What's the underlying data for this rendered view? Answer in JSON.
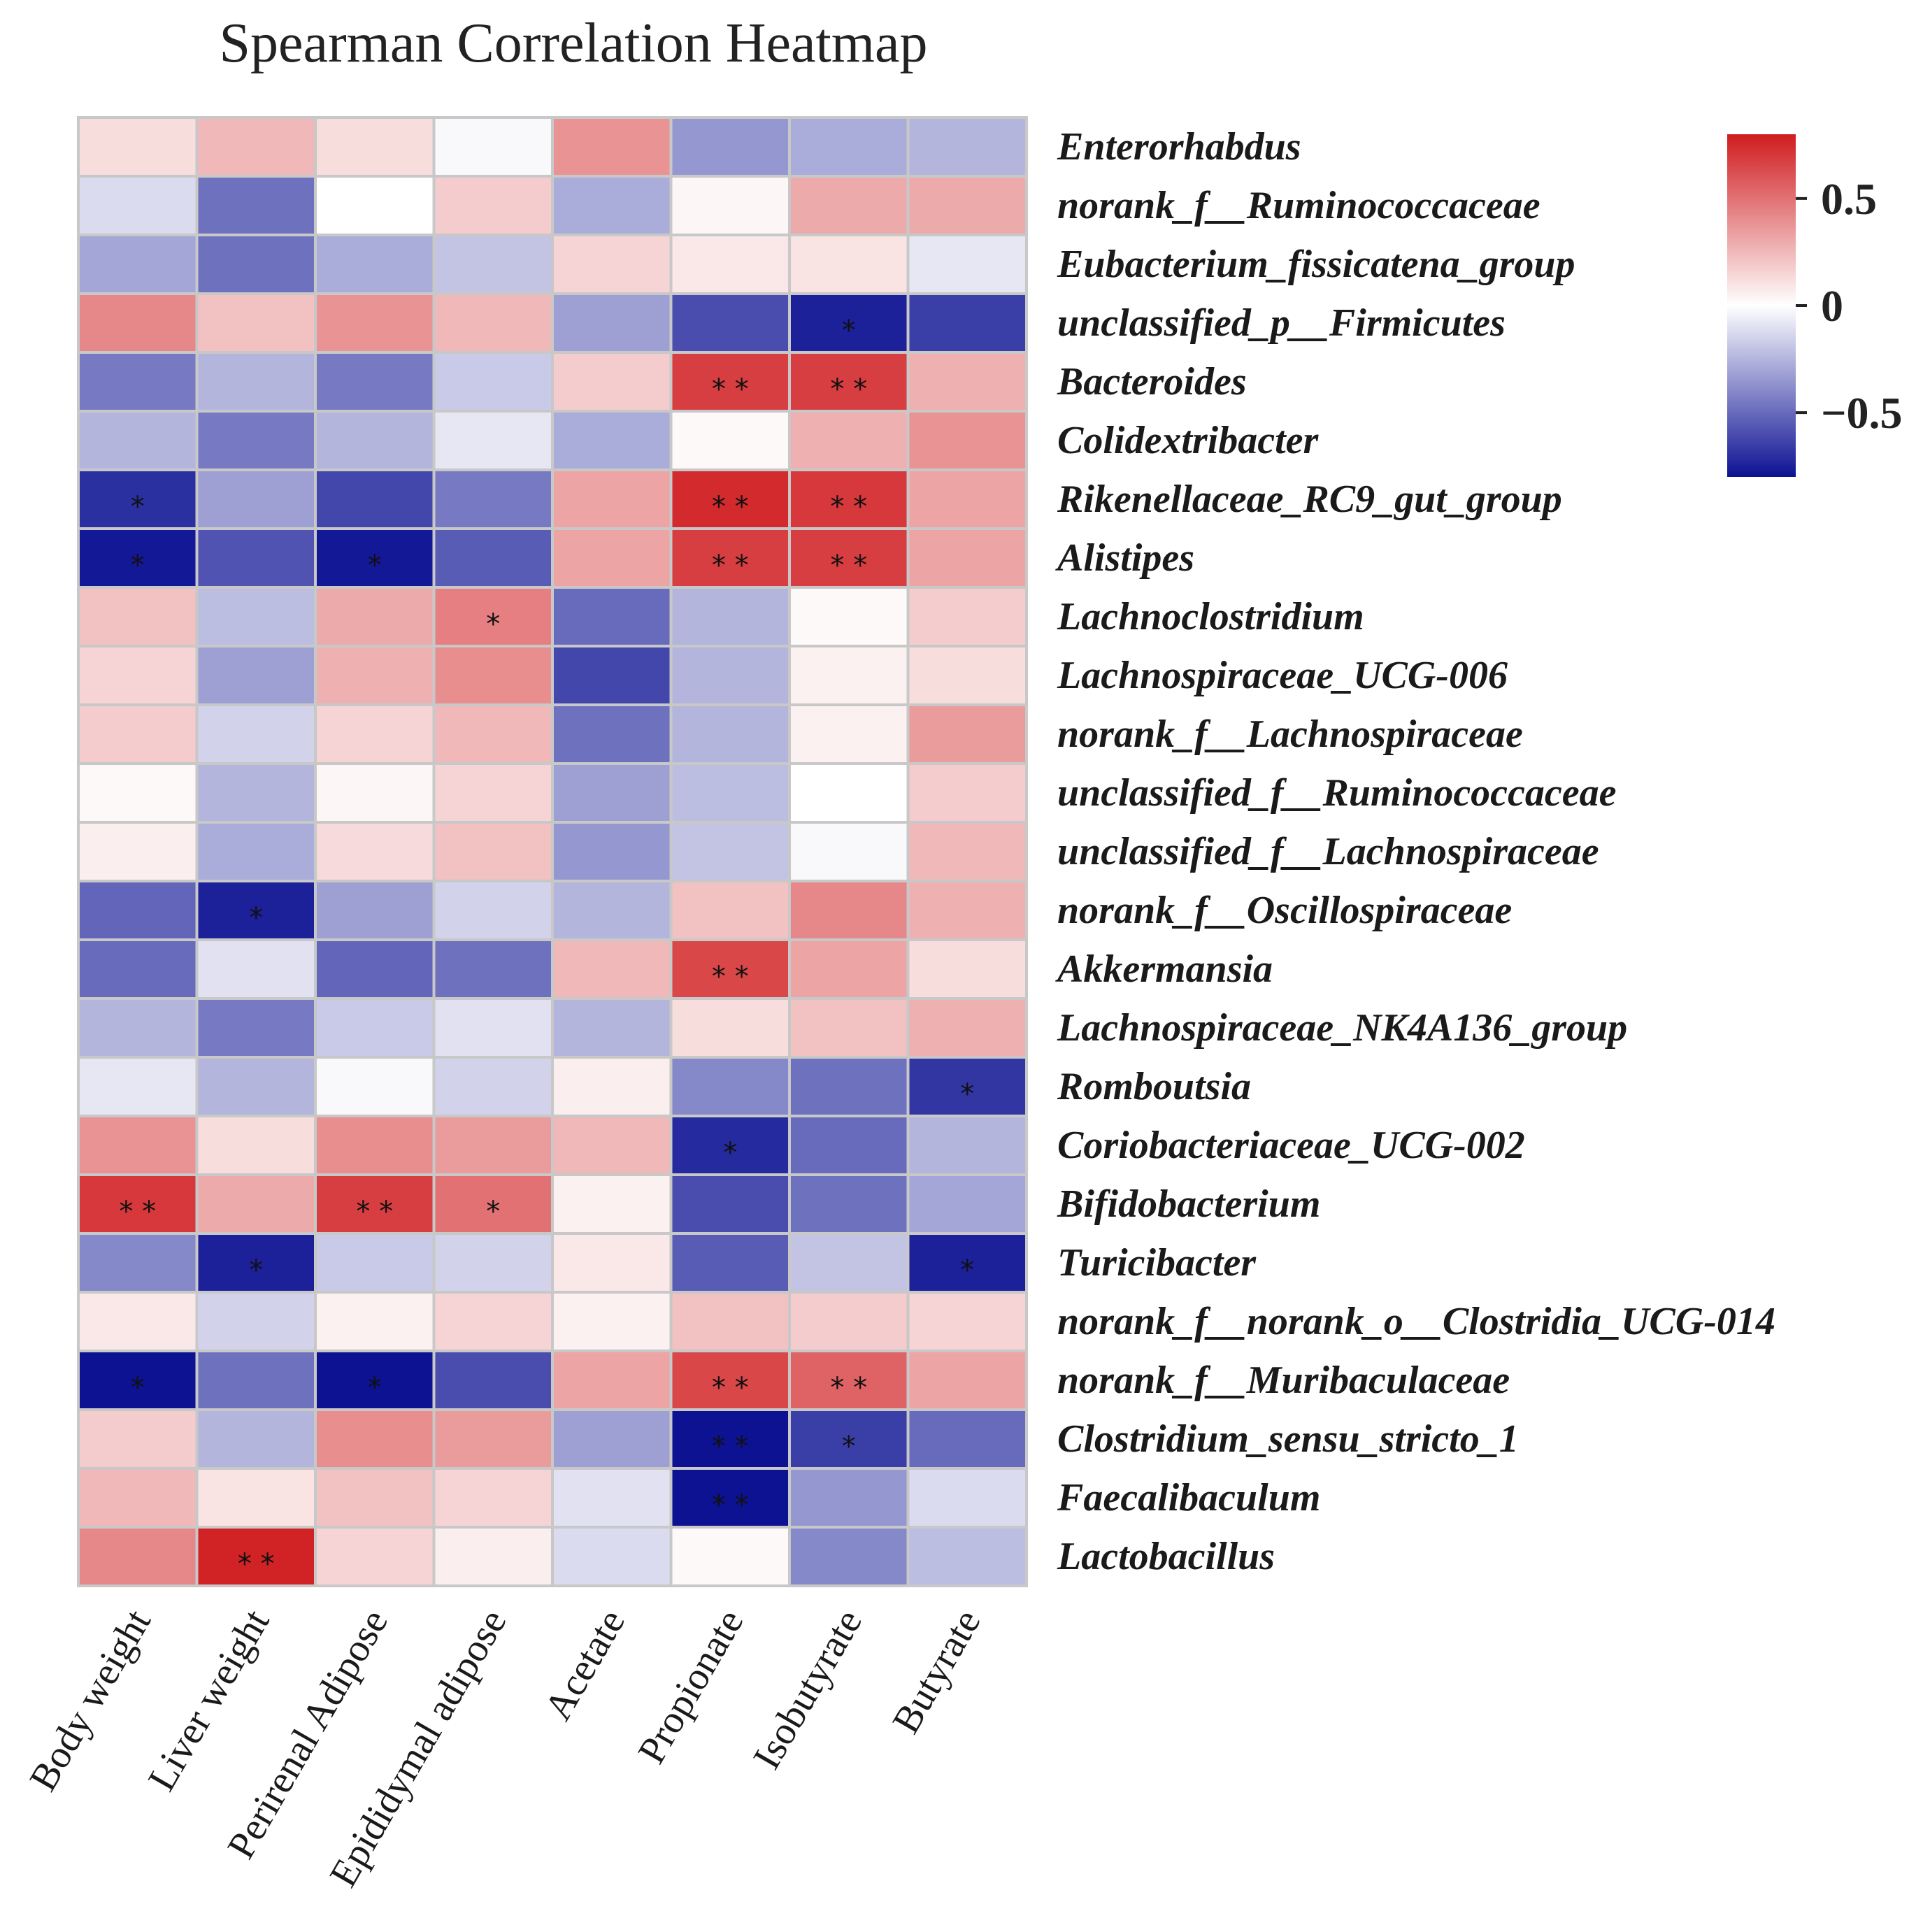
{
  "chart_data": {
    "type": "heatmap",
    "title": "Spearman Correlation Heatmap",
    "columns": [
      "Body weight",
      "Liver weight",
      "Perirenal Adipose",
      "Epididymal adipose",
      "Acetate",
      "Propionate",
      "Isobutyrate",
      "Butyrate"
    ],
    "rows": [
      "Enterorhabdus",
      "norank_f__Ruminococcaceae",
      "Eubacterium_fissicatena_group",
      "unclassified_p__Firmicutes",
      "Bacteroides",
      "Colidextribacter",
      "Rikenellaceae_RC9_gut_group",
      "Alistipes",
      "Lachnoclostridium",
      "Lachnospiraceae_UCG-006",
      "norank_f__Lachnospiraceae",
      "unclassified_f__Ruminococcaceae",
      "unclassified_f__Lachnospiraceae",
      "norank_f__Oscillospiraceae",
      "Akkermansia",
      "Lachnospiraceae_NK4A136_group",
      "Romboutsia",
      "Coriobacteriaceae_UCG-002",
      "Bifidobacterium",
      "Turicibacter",
      "norank_f__norank_o__Clostridia_UCG-014",
      "norank_f__Muribaculaceae",
      "Clostridium_sensu_stricto_1",
      "Faecalibaculum",
      "Lactobacillus"
    ],
    "values": [
      [
        0.12,
        0.25,
        0.12,
        -0.02,
        0.38,
        -0.35,
        -0.28,
        -0.25
      ],
      [
        -0.12,
        -0.48,
        0.0,
        0.18,
        -0.28,
        0.03,
        0.3,
        0.3
      ],
      [
        -0.3,
        -0.48,
        -0.28,
        -0.2,
        0.15,
        0.08,
        0.1,
        -0.08
      ],
      [
        0.42,
        0.22,
        0.38,
        0.25,
        -0.32,
        -0.6,
        -0.75,
        -0.65
      ],
      [
        -0.45,
        -0.25,
        -0.45,
        -0.18,
        0.18,
        0.68,
        0.68,
        0.28
      ],
      [
        -0.25,
        -0.45,
        -0.25,
        -0.08,
        -0.28,
        0.02,
        0.28,
        0.38
      ],
      [
        -0.7,
        -0.32,
        -0.62,
        -0.45,
        0.32,
        0.75,
        0.7,
        0.32
      ],
      [
        -0.78,
        -0.58,
        -0.78,
        -0.55,
        0.32,
        0.68,
        0.68,
        0.32
      ],
      [
        0.22,
        -0.22,
        0.3,
        0.45,
        -0.5,
        -0.25,
        0.02,
        0.18
      ],
      [
        0.15,
        -0.32,
        0.28,
        0.4,
        -0.62,
        -0.25,
        0.05,
        0.12
      ],
      [
        0.18,
        -0.15,
        0.15,
        0.25,
        -0.48,
        -0.25,
        0.05,
        0.35
      ],
      [
        0.02,
        -0.25,
        0.03,
        0.15,
        -0.32,
        -0.22,
        0.0,
        0.18
      ],
      [
        0.06,
        -0.28,
        0.13,
        0.22,
        -0.35,
        -0.2,
        -0.02,
        0.25
      ],
      [
        -0.52,
        -0.75,
        -0.32,
        -0.15,
        -0.25,
        0.22,
        0.42,
        0.28
      ],
      [
        -0.5,
        -0.1,
        -0.52,
        -0.48,
        0.25,
        0.65,
        0.32,
        0.12
      ],
      [
        -0.25,
        -0.45,
        -0.18,
        -0.1,
        -0.25,
        0.12,
        0.22,
        0.28
      ],
      [
        -0.08,
        -0.25,
        -0.02,
        -0.15,
        0.06,
        -0.4,
        -0.48,
        -0.68
      ],
      [
        0.38,
        0.12,
        0.4,
        0.35,
        0.25,
        -0.72,
        -0.5,
        -0.25
      ],
      [
        0.7,
        0.3,
        0.68,
        0.5,
        0.05,
        -0.6,
        -0.48,
        -0.3
      ],
      [
        -0.4,
        -0.75,
        -0.18,
        -0.15,
        0.08,
        -0.55,
        -0.2,
        -0.75
      ],
      [
        0.08,
        -0.15,
        0.05,
        0.15,
        0.05,
        0.22,
        0.18,
        0.15
      ],
      [
        -0.8,
        -0.48,
        -0.8,
        -0.6,
        0.32,
        0.65,
        0.55,
        0.32
      ],
      [
        0.18,
        -0.25,
        0.4,
        0.35,
        -0.32,
        -0.85,
        -0.65,
        -0.5
      ],
      [
        0.25,
        0.1,
        0.22,
        0.15,
        -0.1,
        -0.85,
        -0.35,
        -0.12
      ],
      [
        0.42,
        0.78,
        0.15,
        0.06,
        -0.12,
        0.02,
        -0.4,
        -0.22
      ]
    ],
    "significance": [
      [
        "",
        "",
        "",
        "",
        "",
        "",
        "",
        ""
      ],
      [
        "",
        "",
        "",
        "",
        "",
        "",
        "",
        ""
      ],
      [
        "",
        "",
        "",
        "",
        "",
        "",
        "",
        ""
      ],
      [
        "",
        "",
        "",
        "",
        "",
        "",
        "*",
        ""
      ],
      [
        "",
        "",
        "",
        "",
        "",
        "* *",
        "* *",
        ""
      ],
      [
        "",
        "",
        "",
        "",
        "",
        "",
        "",
        ""
      ],
      [
        "*",
        "",
        "",
        "",
        "",
        "* *",
        "* *",
        ""
      ],
      [
        "*",
        "",
        "*",
        "",
        "",
        "* *",
        "* *",
        ""
      ],
      [
        "",
        "",
        "",
        "*",
        "",
        "",
        "",
        ""
      ],
      [
        "",
        "",
        "",
        "",
        "",
        "",
        "",
        ""
      ],
      [
        "",
        "",
        "",
        "",
        "",
        "",
        "",
        ""
      ],
      [
        "",
        "",
        "",
        "",
        "",
        "",
        "",
        ""
      ],
      [
        "",
        "",
        "",
        "",
        "",
        "",
        "",
        ""
      ],
      [
        "",
        "*",
        "",
        "",
        "",
        "",
        "",
        ""
      ],
      [
        "",
        "",
        "",
        "",
        "",
        "* *",
        "",
        ""
      ],
      [
        "",
        "",
        "",
        "",
        "",
        "",
        "",
        ""
      ],
      [
        "",
        "",
        "",
        "",
        "",
        "",
        "",
        "*"
      ],
      [
        "",
        "",
        "",
        "",
        "",
        "*",
        "",
        ""
      ],
      [
        "* *",
        "",
        "* *",
        "*",
        "",
        "",
        "",
        ""
      ],
      [
        "",
        "*",
        "",
        "",
        "",
        "",
        "",
        "*"
      ],
      [
        "",
        "",
        "",
        "",
        "",
        "",
        "",
        ""
      ],
      [
        "*",
        "",
        "*",
        "",
        "",
        "* *",
        "* *",
        ""
      ],
      [
        "",
        "",
        "",
        "",
        "",
        "* *",
        "*",
        ""
      ],
      [
        "",
        "",
        "",
        "",
        "",
        "* *",
        "",
        ""
      ],
      [
        "",
        "* *",
        "",
        "",
        "",
        "",
        "",
        ""
      ]
    ],
    "colorbar": {
      "ticks": [
        0.5,
        0,
        -0.5
      ],
      "tick_labels": [
        "0.5",
        "0",
        "−0.5"
      ],
      "range": [
        -0.8,
        0.8
      ],
      "colors": {
        "negative": "#0d1293",
        "neutral": "#ffffff",
        "positive": "#d01c1f"
      }
    }
  }
}
